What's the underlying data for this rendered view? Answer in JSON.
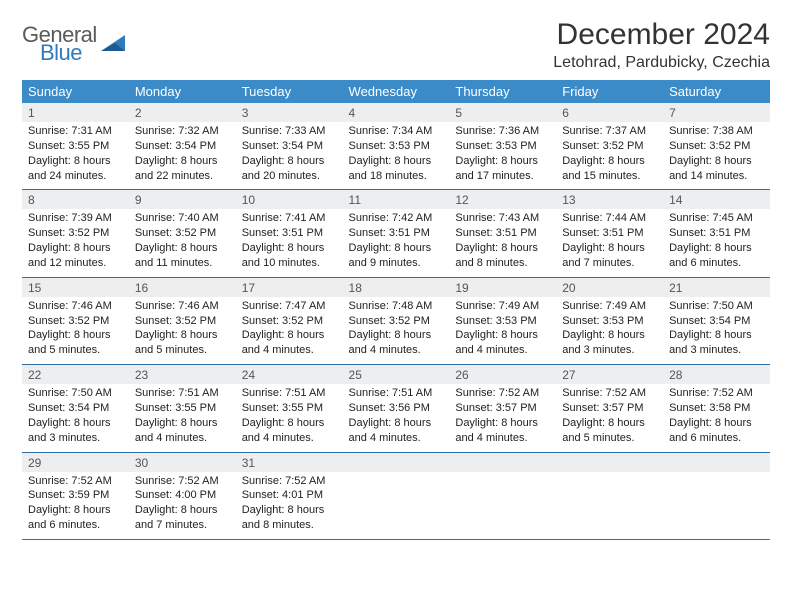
{
  "brand": {
    "line1": "General",
    "line2": "Blue"
  },
  "title": "December 2024",
  "location": "Letohrad, Pardubicky, Czechia",
  "colors": {
    "header_bg": "#3b8bc8",
    "header_fg": "#ffffff",
    "daynum_bg": "#eceeef",
    "rule": "#2f6fa8",
    "logo_gray": "#5a5a5a",
    "logo_blue": "#2f7bbf"
  },
  "day_headers": [
    "Sunday",
    "Monday",
    "Tuesday",
    "Wednesday",
    "Thursday",
    "Friday",
    "Saturday"
  ],
  "weeks": [
    [
      {
        "n": "1",
        "sunrise": "7:31 AM",
        "sunset": "3:55 PM",
        "daylight": "8 hours and 24 minutes."
      },
      {
        "n": "2",
        "sunrise": "7:32 AM",
        "sunset": "3:54 PM",
        "daylight": "8 hours and 22 minutes."
      },
      {
        "n": "3",
        "sunrise": "7:33 AM",
        "sunset": "3:54 PM",
        "daylight": "8 hours and 20 minutes."
      },
      {
        "n": "4",
        "sunrise": "7:34 AM",
        "sunset": "3:53 PM",
        "daylight": "8 hours and 18 minutes."
      },
      {
        "n": "5",
        "sunrise": "7:36 AM",
        "sunset": "3:53 PM",
        "daylight": "8 hours and 17 minutes."
      },
      {
        "n": "6",
        "sunrise": "7:37 AM",
        "sunset": "3:52 PM",
        "daylight": "8 hours and 15 minutes."
      },
      {
        "n": "7",
        "sunrise": "7:38 AM",
        "sunset": "3:52 PM",
        "daylight": "8 hours and 14 minutes."
      }
    ],
    [
      {
        "n": "8",
        "sunrise": "7:39 AM",
        "sunset": "3:52 PM",
        "daylight": "8 hours and 12 minutes."
      },
      {
        "n": "9",
        "sunrise": "7:40 AM",
        "sunset": "3:52 PM",
        "daylight": "8 hours and 11 minutes."
      },
      {
        "n": "10",
        "sunrise": "7:41 AM",
        "sunset": "3:51 PM",
        "daylight": "8 hours and 10 minutes."
      },
      {
        "n": "11",
        "sunrise": "7:42 AM",
        "sunset": "3:51 PM",
        "daylight": "8 hours and 9 minutes."
      },
      {
        "n": "12",
        "sunrise": "7:43 AM",
        "sunset": "3:51 PM",
        "daylight": "8 hours and 8 minutes."
      },
      {
        "n": "13",
        "sunrise": "7:44 AM",
        "sunset": "3:51 PM",
        "daylight": "8 hours and 7 minutes."
      },
      {
        "n": "14",
        "sunrise": "7:45 AM",
        "sunset": "3:51 PM",
        "daylight": "8 hours and 6 minutes."
      }
    ],
    [
      {
        "n": "15",
        "sunrise": "7:46 AM",
        "sunset": "3:52 PM",
        "daylight": "8 hours and 5 minutes."
      },
      {
        "n": "16",
        "sunrise": "7:46 AM",
        "sunset": "3:52 PM",
        "daylight": "8 hours and 5 minutes."
      },
      {
        "n": "17",
        "sunrise": "7:47 AM",
        "sunset": "3:52 PM",
        "daylight": "8 hours and 4 minutes."
      },
      {
        "n": "18",
        "sunrise": "7:48 AM",
        "sunset": "3:52 PM",
        "daylight": "8 hours and 4 minutes."
      },
      {
        "n": "19",
        "sunrise": "7:49 AM",
        "sunset": "3:53 PM",
        "daylight": "8 hours and 4 minutes."
      },
      {
        "n": "20",
        "sunrise": "7:49 AM",
        "sunset": "3:53 PM",
        "daylight": "8 hours and 3 minutes."
      },
      {
        "n": "21",
        "sunrise": "7:50 AM",
        "sunset": "3:54 PM",
        "daylight": "8 hours and 3 minutes."
      }
    ],
    [
      {
        "n": "22",
        "sunrise": "7:50 AM",
        "sunset": "3:54 PM",
        "daylight": "8 hours and 3 minutes."
      },
      {
        "n": "23",
        "sunrise": "7:51 AM",
        "sunset": "3:55 PM",
        "daylight": "8 hours and 4 minutes."
      },
      {
        "n": "24",
        "sunrise": "7:51 AM",
        "sunset": "3:55 PM",
        "daylight": "8 hours and 4 minutes."
      },
      {
        "n": "25",
        "sunrise": "7:51 AM",
        "sunset": "3:56 PM",
        "daylight": "8 hours and 4 minutes."
      },
      {
        "n": "26",
        "sunrise": "7:52 AM",
        "sunset": "3:57 PM",
        "daylight": "8 hours and 4 minutes."
      },
      {
        "n": "27",
        "sunrise": "7:52 AM",
        "sunset": "3:57 PM",
        "daylight": "8 hours and 5 minutes."
      },
      {
        "n": "28",
        "sunrise": "7:52 AM",
        "sunset": "3:58 PM",
        "daylight": "8 hours and 6 minutes."
      }
    ],
    [
      {
        "n": "29",
        "sunrise": "7:52 AM",
        "sunset": "3:59 PM",
        "daylight": "8 hours and 6 minutes."
      },
      {
        "n": "30",
        "sunrise": "7:52 AM",
        "sunset": "4:00 PM",
        "daylight": "8 hours and 7 minutes."
      },
      {
        "n": "31",
        "sunrise": "7:52 AM",
        "sunset": "4:01 PM",
        "daylight": "8 hours and 8 minutes."
      },
      null,
      null,
      null,
      null
    ]
  ],
  "labels": {
    "sunrise": "Sunrise: ",
    "sunset": "Sunset: ",
    "daylight": "Daylight: "
  }
}
